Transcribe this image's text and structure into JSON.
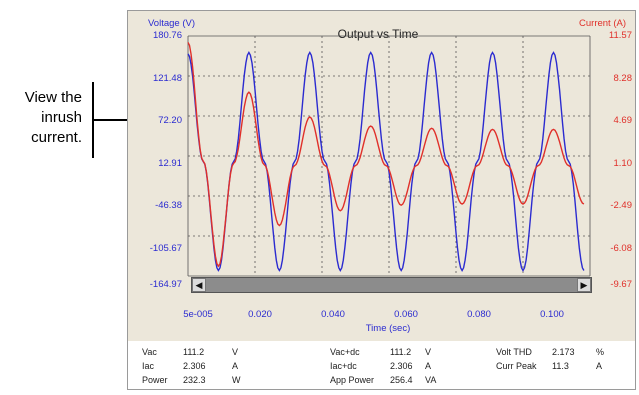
{
  "annotation": {
    "lines": [
      "View the",
      "inrush",
      "current."
    ]
  },
  "chart": {
    "title": "Output vs Time",
    "y_left_title": "Voltage (V)",
    "y_right_title": "Current (A)",
    "y_left_ticks": [
      "180.76",
      "121.48",
      "72.20",
      "12.91",
      "-46.38",
      "-105.67",
      "-164.97"
    ],
    "y_right_ticks": [
      "11.57",
      "8.28",
      "4.69",
      "1.10",
      "-2.49",
      "-6.08",
      "-9.67"
    ],
    "x_ticks": [
      "5e-005",
      "0.020",
      "0.040",
      "0.060",
      "0.080",
      "0.100"
    ],
    "x_label": "Time (sec)",
    "colors": {
      "voltage": "#2b2bd0",
      "current": "#e0302a",
      "grid": "#555555",
      "background": "#ece7da"
    },
    "scroll_left_icon": "arrow-left-icon",
    "scroll_right_icon": "arrow-right-icon"
  },
  "chart_data": {
    "type": "line",
    "title": "Output vs Time",
    "xlabel": "Time (sec)",
    "ylabel": "Voltage (V)",
    "y2label": "Current (A)",
    "xlim": [
      5e-05,
      0.11
    ],
    "ylim": [
      -164.97,
      180.76
    ],
    "y2lim": [
      -9.67,
      11.57
    ],
    "grid": true,
    "series": [
      {
        "name": "Voltage (V)",
        "axis": "left",
        "x": [
          0.0,
          0.00417,
          0.00833,
          0.0125,
          0.01667,
          0.02083,
          0.025,
          0.02917,
          0.03333,
          0.0375,
          0.04167,
          0.04583,
          0.05,
          0.05417,
          0.05833,
          0.0625,
          0.06667,
          0.07083,
          0.075,
          0.07917,
          0.08333,
          0.0875,
          0.09167,
          0.09583,
          0.1,
          0.10417,
          0.10833
        ],
        "values": [
          155,
          0,
          -157,
          0,
          157,
          0,
          -157,
          0,
          157,
          0,
          -157,
          0,
          157,
          0,
          -157,
          0,
          157,
          0,
          -157,
          0,
          157,
          0,
          -157,
          0,
          157,
          0,
          -157
        ]
      },
      {
        "name": "Current (A)",
        "axis": "right",
        "x": [
          0.0,
          0.00417,
          0.00833,
          0.0125,
          0.01667,
          0.02083,
          0.025,
          0.02917,
          0.03333,
          0.0375,
          0.04167,
          0.04583,
          0.05,
          0.05417,
          0.05833,
          0.0625,
          0.06667,
          0.07083,
          0.075,
          0.07917,
          0.08333,
          0.0875,
          0.09167,
          0.09583,
          0.1,
          0.10417,
          0.10833
        ],
        "values": [
          11.0,
          0.5,
          -8.8,
          0.3,
          6.6,
          0.2,
          -5.2,
          0.1,
          4.4,
          0.1,
          -3.9,
          0.1,
          3.6,
          0.1,
          -3.4,
          0.1,
          3.4,
          0.1,
          -3.3,
          0.1,
          3.3,
          0.1,
          -3.3,
          0.1,
          3.3,
          0.1,
          -3.3
        ]
      }
    ]
  },
  "readings": {
    "vac_label": "Vac",
    "vac_value": "111.2",
    "vac_unit": "V",
    "iac_label": "Iac",
    "iac_value": "2.306",
    "iac_unit": "A",
    "power_label": "Power",
    "power_value": "232.3",
    "power_unit": "W",
    "vacdc_label": "Vac+dc",
    "vacdc_value": "111.2",
    "vacdc_unit": "V",
    "iacdc_label": "Iac+dc",
    "iacdc_value": "2.306",
    "iacdc_unit": "A",
    "app_label": "App Power",
    "app_value": "256.4",
    "app_unit": "VA",
    "thd_label": "Volt THD",
    "thd_value": "2.173",
    "thd_unit": "%",
    "peak_label": "Curr Peak",
    "peak_value": "11.3",
    "peak_unit": "A"
  }
}
